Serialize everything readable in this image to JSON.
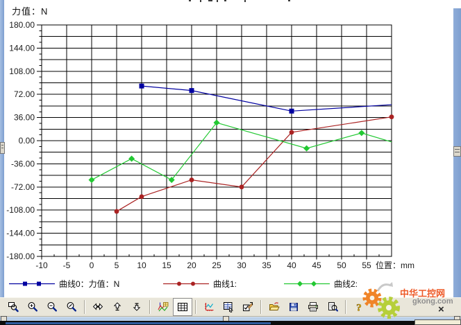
{
  "colors": {
    "frame": "#7f9fd0",
    "toolbar_bg": "#e9e6da",
    "grid": "#000000",
    "series0": "#0000a0",
    "series1": "#aa2222",
    "series2": "#22c832"
  },
  "watermark": {
    "site_name": "中华工控网",
    "site_domain": "gkong.com",
    "close_glyph": "×"
  },
  "toolbar": {
    "active_button": "grid-toggle",
    "groups": [
      [
        "zoom-window",
        "zoom-in",
        "zoom-out",
        "zoom-mark"
      ],
      [
        "pan-horizontal",
        "shift-up",
        "shift-down"
      ],
      [
        "curve-style",
        "grid-toggle"
      ],
      [
        "axis-scale",
        "data-table",
        "edit-properties"
      ],
      [
        "open-file",
        "save-file",
        "print",
        "print-preview"
      ],
      [
        "help"
      ]
    ]
  },
  "chart_data": {
    "type": "line",
    "title": "",
    "xlabel": "位置：mm",
    "ylabel": "力值：N",
    "xlim": [
      -10,
      60
    ],
    "ylim": [
      -180,
      180
    ],
    "grid": {
      "x_step": 5,
      "y_step": 18
    },
    "x_tick_labels": [
      "-10",
      "-5",
      "0",
      "5",
      "10",
      "15",
      "20",
      "25",
      "30",
      "35",
      "40",
      "45",
      "50",
      "55"
    ],
    "y_tick_labels": [
      "180.00",
      "144.00",
      "108.00",
      "72.00",
      "36.00",
      "0.00",
      "-36.00",
      "-72.00",
      "-108.00",
      "-144.00",
      "-180.00"
    ],
    "legend_position": "bottom",
    "series": [
      {
        "name": "曲线0：力值：N",
        "color": "#0000a0",
        "marker": "square",
        "end_marker": false,
        "points": [
          [
            10,
            85
          ],
          [
            20,
            78
          ],
          [
            40,
            46
          ],
          [
            60,
            56
          ]
        ]
      },
      {
        "name": "曲线1:",
        "color": "#aa2222",
        "marker": "circle",
        "end_marker": true,
        "points": [
          [
            5,
            -110
          ],
          [
            10,
            -87
          ],
          [
            20,
            -61
          ],
          [
            30,
            -72
          ],
          [
            40,
            13
          ],
          [
            60,
            37
          ]
        ]
      },
      {
        "name": "曲线2:",
        "color": "#22c832",
        "marker": "diamond",
        "end_marker": false,
        "points": [
          [
            0,
            -61
          ],
          [
            8,
            -28
          ],
          [
            16,
            -61
          ],
          [
            25,
            28
          ],
          [
            43,
            -12
          ],
          [
            54,
            12
          ],
          [
            60,
            -2
          ]
        ]
      }
    ]
  }
}
